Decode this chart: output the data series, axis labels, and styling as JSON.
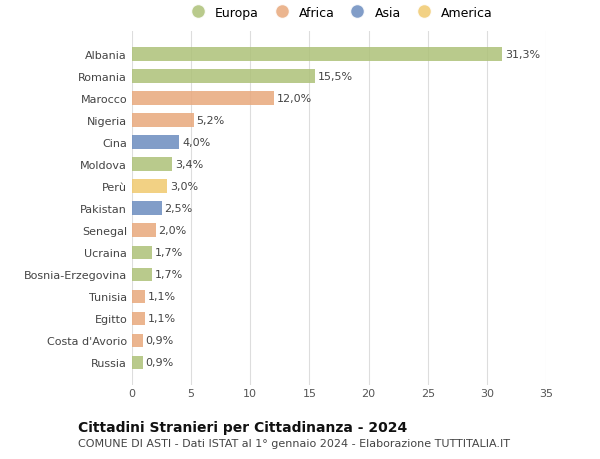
{
  "categories": [
    "Albania",
    "Romania",
    "Marocco",
    "Nigeria",
    "Cina",
    "Moldova",
    "Perù",
    "Pakistan",
    "Senegal",
    "Ucraina",
    "Bosnia-Erzegovina",
    "Tunisia",
    "Egitto",
    "Costa d'Avorio",
    "Russia"
  ],
  "values": [
    31.3,
    15.5,
    12.0,
    5.2,
    4.0,
    3.4,
    3.0,
    2.5,
    2.0,
    1.7,
    1.7,
    1.1,
    1.1,
    0.9,
    0.9
  ],
  "labels": [
    "31,3%",
    "15,5%",
    "12,0%",
    "5,2%",
    "4,0%",
    "3,4%",
    "3,0%",
    "2,5%",
    "2,0%",
    "1,7%",
    "1,7%",
    "1,1%",
    "1,1%",
    "0,9%",
    "0,9%"
  ],
  "colors": [
    "#adc178",
    "#adc178",
    "#e8a87c",
    "#e8a87c",
    "#6b8cbf",
    "#adc178",
    "#f0c96e",
    "#6b8cbf",
    "#e8a87c",
    "#adc178",
    "#adc178",
    "#e8a87c",
    "#e8a87c",
    "#e8a87c",
    "#adc178"
  ],
  "legend": [
    {
      "label": "Europa",
      "color": "#adc178"
    },
    {
      "label": "Africa",
      "color": "#e8a87c"
    },
    {
      "label": "Asia",
      "color": "#6b8cbf"
    },
    {
      "label": "America",
      "color": "#f0c96e"
    }
  ],
  "xlim": [
    0,
    35
  ],
  "xticks": [
    0,
    5,
    10,
    15,
    20,
    25,
    30,
    35
  ],
  "title": "Cittadini Stranieri per Cittadinanza - 2024",
  "subtitle": "COMUNE DI ASTI - Dati ISTAT al 1° gennaio 2024 - Elaborazione TUTTITALIA.IT",
  "bg_color": "#ffffff",
  "grid_color": "#dddddd",
  "bar_height": 0.62,
  "title_fontsize": 10,
  "subtitle_fontsize": 8,
  "label_fontsize": 8,
  "tick_fontsize": 8,
  "legend_fontsize": 9
}
